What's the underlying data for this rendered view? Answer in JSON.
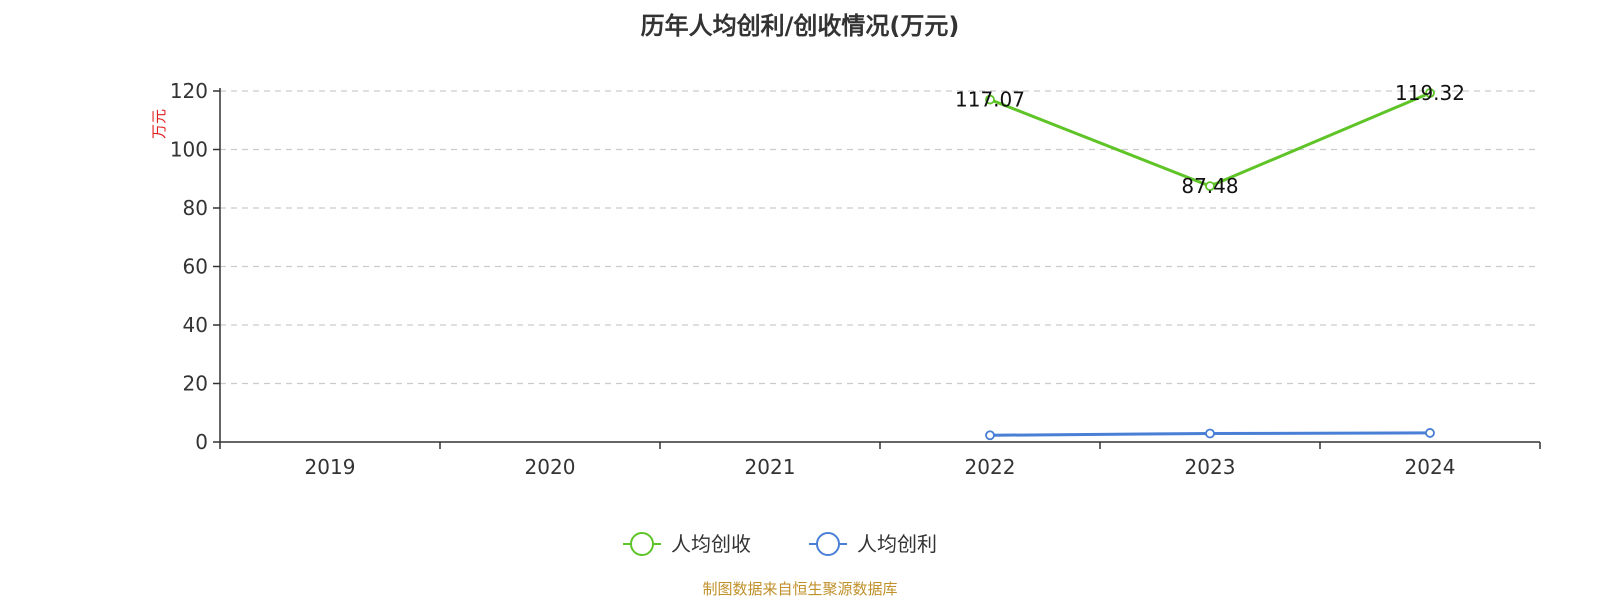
{
  "chart_data": {
    "type": "line",
    "title": "历年人均创利/创收情况(万元)",
    "ylabel": "万元",
    "xlabel": "",
    "categories": [
      "2019",
      "2020",
      "2021",
      "2022",
      "2023",
      "2024"
    ],
    "ylim": [
      0,
      120
    ],
    "yticks": [
      "0",
      "20",
      "40",
      "60",
      "80",
      "100",
      "120"
    ],
    "grid": true,
    "legend_position": "bottom",
    "series": [
      {
        "name": "人均创收",
        "color": "#5fc427",
        "values": [
          null,
          null,
          null,
          117.07,
          87.48,
          119.32
        ],
        "labels": [
          "",
          "",
          "",
          "117.07",
          "87.48",
          "119.32"
        ]
      },
      {
        "name": "人均创利",
        "color": "#4a7fd6",
        "values": [
          null,
          null,
          null,
          2.3,
          2.9,
          3.1
        ],
        "labels": [
          "",
          "",
          "",
          "",
          "",
          ""
        ]
      }
    ]
  },
  "source": "制图数据来自恒生聚源数据库",
  "colors": {
    "ylabel": "#e02020",
    "source": "#c0902a",
    "axis": "#333333",
    "grid": "#cccccc"
  }
}
